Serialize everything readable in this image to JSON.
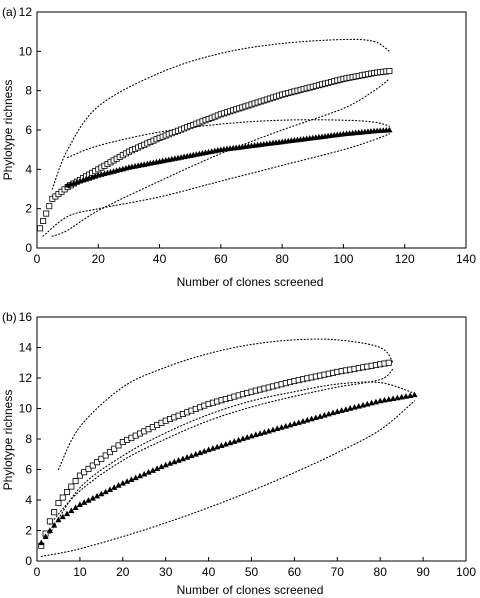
{
  "chart_data": [
    {
      "type": "scatter",
      "panel_label": "(a)",
      "xlabel": "Number of clones screened",
      "ylabel": "Phylotype richness",
      "xlim": [
        0,
        140
      ],
      "ylim": [
        0,
        12
      ],
      "xticks": [
        "0",
        "20",
        "40",
        "60",
        "80",
        "100",
        "120",
        "140"
      ],
      "yticks": [
        "0",
        "2",
        "4",
        "6",
        "8",
        "10",
        "12"
      ],
      "grid": false,
      "legend": "none",
      "series": [
        {
          "marker": "open-square",
          "x": [
            1,
            5,
            10,
            20,
            30,
            40,
            50,
            60,
            70,
            80,
            90,
            100,
            110,
            115
          ],
          "y": [
            1.0,
            2.5,
            3.1,
            4.0,
            4.9,
            5.6,
            6.2,
            6.8,
            7.3,
            7.8,
            8.2,
            8.6,
            8.9,
            9.0
          ]
        },
        {
          "marker": "filled-triangle",
          "x": [
            10,
            20,
            30,
            40,
            50,
            60,
            70,
            80,
            90,
            100,
            110,
            115
          ],
          "y": [
            3.2,
            3.7,
            4.1,
            4.4,
            4.7,
            5.0,
            5.2,
            5.4,
            5.6,
            5.8,
            5.95,
            6.0
          ]
        }
      ],
      "confidence_bounds": [
        {
          "upper": {
            "x": [
              5,
              10,
              20,
              40,
              60,
              80,
              100,
              110,
              115
            ],
            "y": [
              3.0,
              5.0,
              7.2,
              8.9,
              9.9,
              10.4,
              10.6,
              10.5,
              10.0
            ]
          },
          "lower": {
            "x": [
              5,
              10,
              20,
              40,
              60,
              80,
              100,
              110,
              115
            ],
            "y": [
              0.6,
              0.9,
              1.9,
              3.4,
              4.8,
              6.0,
              7.1,
              8.0,
              8.6
            ]
          }
        },
        {
          "upper": {
            "x": [
              10,
              20,
              40,
              60,
              80,
              100,
              110,
              115
            ],
            "y": [
              4.6,
              5.2,
              5.9,
              6.3,
              6.5,
              6.5,
              6.4,
              6.2
            ]
          },
          "lower": {
            "x": [
              2,
              10,
              20,
              40,
              60,
              80,
              100,
              110,
              115
            ],
            "y": [
              0.6,
              1.6,
              2.0,
              2.6,
              3.4,
              4.2,
              5.0,
              5.5,
              5.8
            ]
          }
        }
      ]
    },
    {
      "type": "scatter",
      "panel_label": "(b)",
      "xlabel": "Number of clones screened",
      "ylabel": "Phylotype richness",
      "xlim": [
        0,
        100
      ],
      "ylim": [
        0,
        16
      ],
      "xticks": [
        "0",
        "10",
        "20",
        "30",
        "40",
        "50",
        "60",
        "70",
        "80",
        "90",
        "100"
      ],
      "yticks": [
        "0",
        "2",
        "4",
        "6",
        "8",
        "10",
        "12",
        "14",
        "16"
      ],
      "grid": false,
      "legend": "none",
      "series": [
        {
          "marker": "open-square",
          "x": [
            1,
            2,
            3,
            5,
            10,
            20,
            30,
            40,
            50,
            60,
            70,
            80,
            82
          ],
          "y": [
            1.0,
            1.8,
            2.6,
            3.8,
            5.6,
            7.8,
            9.2,
            10.3,
            11.1,
            11.8,
            12.4,
            12.9,
            13.0
          ]
        },
        {
          "marker": "filled-triangle",
          "x": [
            1,
            3,
            5,
            10,
            20,
            30,
            40,
            50,
            60,
            70,
            80,
            88
          ],
          "y": [
            1.2,
            2.0,
            2.7,
            3.7,
            5.1,
            6.3,
            7.3,
            8.2,
            9.0,
            9.8,
            10.5,
            10.9
          ]
        }
      ],
      "confidence_bounds": [
        {
          "upper": {
            "x": [
              5,
              10,
              20,
              30,
              40,
              50,
              60,
              70,
              80,
              83
            ],
            "y": [
              6.0,
              8.8,
              11.4,
              12.7,
              13.6,
              14.2,
              14.5,
              14.5,
              14.0,
              13.0
            ]
          },
          "lower": {
            "x": [
              3,
              10,
              20,
              30,
              40,
              50,
              60,
              70,
              80,
              83
            ],
            "y": [
              2.4,
              4.6,
              6.6,
              8.0,
              9.2,
              10.1,
              10.8,
              11.4,
              11.9,
              12.6
            ]
          }
        },
        {
          "upper": {
            "x": [
              3,
              10,
              20,
              30,
              40,
              50,
              60,
              70,
              80,
              88
            ],
            "y": [
              1.8,
              4.8,
              6.9,
              8.4,
              9.6,
              10.5,
              11.1,
              11.6,
              11.7,
              11.0
            ]
          },
          "lower": {
            "x": [
              1,
              5,
              10,
              20,
              30,
              40,
              50,
              60,
              70,
              80,
              88
            ],
            "y": [
              0.3,
              0.5,
              0.8,
              1.6,
              2.5,
              3.5,
              4.6,
              5.8,
              7.1,
              8.6,
              10.5
            ]
          }
        }
      ]
    }
  ]
}
